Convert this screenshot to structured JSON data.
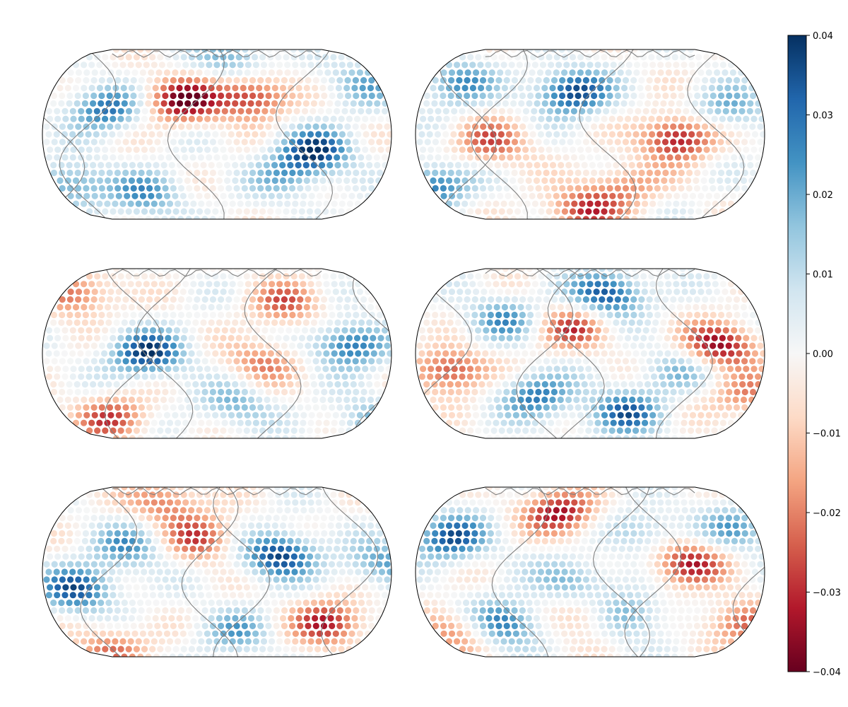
{
  "figure": {
    "layout": "3 rows x 2 columns of Robinson-projection world maps",
    "dot_pattern": "gridded spherical-harmonic-like scalar field shown as colored dots",
    "coastline_color": "#808080",
    "border_color": "#000000"
  },
  "maps": [
    {
      "panel": "row1-col1",
      "anomalies": [
        [
          0.4,
          0.3,
          0.95,
          -1
        ],
        [
          0.6,
          0.28,
          0.8,
          -1
        ],
        [
          0.18,
          0.35,
          0.75,
          1
        ],
        [
          0.78,
          0.6,
          0.9,
          1
        ],
        [
          0.08,
          0.8,
          0.6,
          1
        ],
        [
          0.3,
          0.85,
          0.55,
          1
        ],
        [
          0.55,
          0.05,
          0.5,
          1
        ],
        [
          0.92,
          0.2,
          0.45,
          1
        ],
        [
          0.7,
          0.75,
          0.4,
          1
        ]
      ]
    },
    {
      "panel": "row1-col2",
      "anomalies": [
        [
          0.45,
          0.25,
          0.95,
          1
        ],
        [
          0.75,
          0.52,
          0.9,
          -1
        ],
        [
          0.22,
          0.55,
          0.6,
          -1
        ],
        [
          0.48,
          0.95,
          0.7,
          -1
        ],
        [
          0.05,
          0.8,
          0.75,
          1
        ],
        [
          0.12,
          0.2,
          0.6,
          1
        ],
        [
          0.9,
          0.35,
          0.5,
          1
        ],
        [
          0.6,
          0.8,
          0.45,
          -1
        ]
      ]
    },
    {
      "panel": "row2-col1",
      "anomalies": [
        [
          0.3,
          0.5,
          0.95,
          1
        ],
        [
          0.88,
          0.45,
          0.8,
          1
        ],
        [
          0.1,
          0.15,
          0.6,
          -1
        ],
        [
          0.2,
          0.88,
          0.65,
          -1
        ],
        [
          0.7,
          0.2,
          0.55,
          -1
        ],
        [
          0.63,
          0.55,
          0.5,
          -1
        ],
        [
          0.55,
          0.8,
          0.45,
          1
        ],
        [
          0.95,
          0.9,
          0.5,
          1
        ]
      ]
    },
    {
      "panel": "row2-col2",
      "anomalies": [
        [
          0.55,
          0.15,
          0.9,
          1
        ],
        [
          0.87,
          0.45,
          0.9,
          -1
        ],
        [
          0.1,
          0.6,
          0.75,
          -1
        ],
        [
          0.45,
          0.35,
          0.65,
          -1
        ],
        [
          0.35,
          0.75,
          0.7,
          1
        ],
        [
          0.6,
          0.85,
          0.75,
          1
        ],
        [
          0.25,
          0.3,
          0.55,
          1
        ],
        [
          0.95,
          0.75,
          0.5,
          -1
        ],
        [
          0.75,
          0.6,
          0.4,
          1
        ]
      ]
    },
    {
      "panel": "row3-col1",
      "anomalies": [
        [
          0.1,
          0.6,
          0.85,
          1
        ],
        [
          0.68,
          0.4,
          0.95,
          1
        ],
        [
          0.82,
          0.8,
          0.8,
          -1
        ],
        [
          0.45,
          0.3,
          0.65,
          -1
        ],
        [
          0.35,
          0.08,
          0.55,
          -1
        ],
        [
          0.2,
          0.95,
          0.55,
          -1
        ],
        [
          0.25,
          0.35,
          0.55,
          1
        ],
        [
          0.55,
          0.85,
          0.45,
          1
        ],
        [
          0.98,
          0.45,
          0.55,
          1
        ]
      ]
    },
    {
      "panel": "row3-col2",
      "anomalies": [
        [
          0.1,
          0.3,
          0.85,
          1
        ],
        [
          0.42,
          0.15,
          0.85,
          -1
        ],
        [
          0.78,
          0.45,
          0.8,
          -1
        ],
        [
          0.25,
          0.8,
          0.8,
          1
        ],
        [
          0.6,
          0.75,
          0.65,
          1
        ],
        [
          0.45,
          0.55,
          0.5,
          1
        ],
        [
          0.5,
          0.75,
          0.5,
          -1
        ],
        [
          0.12,
          0.85,
          0.55,
          -1
        ],
        [
          0.93,
          0.8,
          0.6,
          -1
        ],
        [
          0.92,
          0.25,
          0.5,
          1
        ],
        [
          0.65,
          0.25,
          0.4,
          1
        ]
      ]
    }
  ],
  "colorbar": {
    "vmin": -0.04,
    "vmax": 0.04,
    "tick_values": [
      0.04,
      0.03,
      0.02,
      0.01,
      0.0,
      -0.01,
      -0.02,
      -0.03,
      -0.04
    ],
    "tick_labels": [
      "0.04",
      "0.03",
      "0.02",
      "0.01",
      "0.00",
      "−0.01",
      "−0.02",
      "−0.03",
      "−0.04"
    ],
    "colormap": "RdBu",
    "stops": [
      "#67001f",
      "#b2182b",
      "#d6604d",
      "#f4a582",
      "#fddbc7",
      "#f7f7f7",
      "#d1e5f0",
      "#92c5de",
      "#4393c3",
      "#2166ac",
      "#053061"
    ]
  }
}
